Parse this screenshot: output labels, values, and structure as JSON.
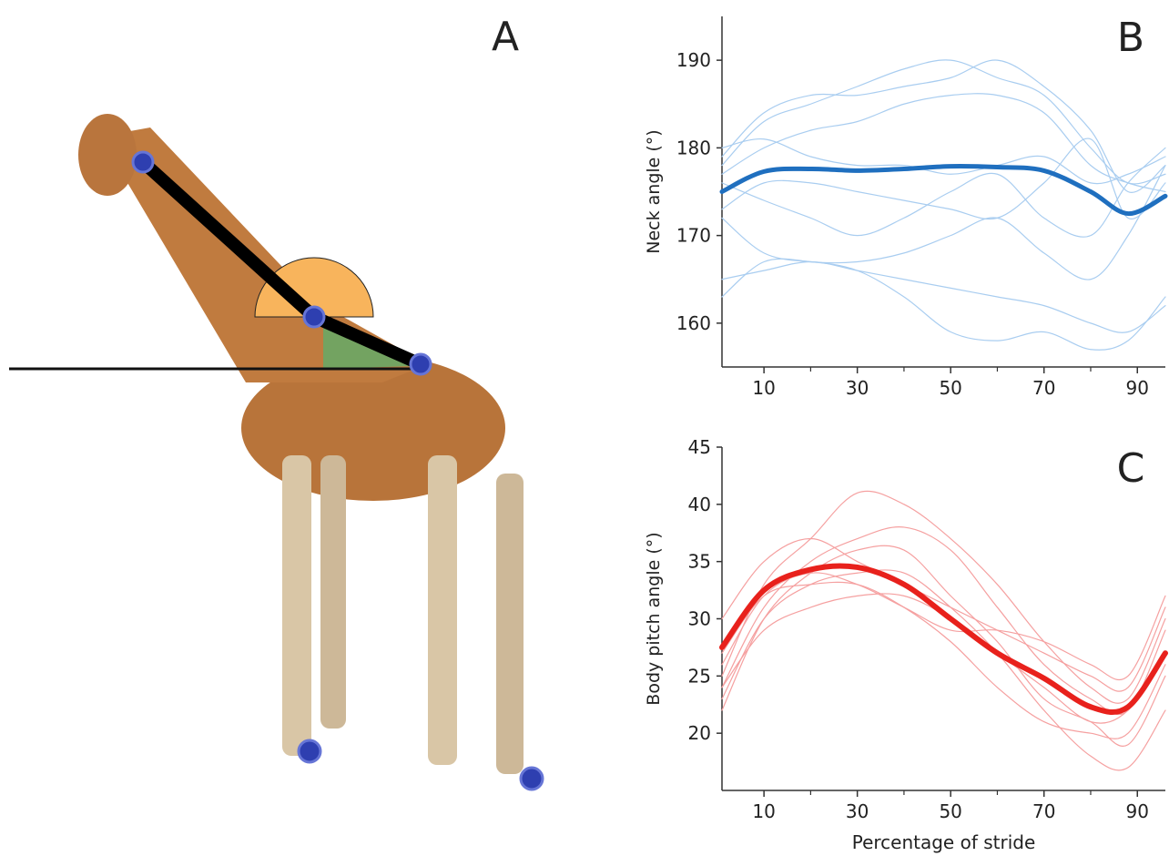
{
  "panel_a": {
    "label": "A"
  },
  "chart_data": [
    {
      "type": "line",
      "title": "B",
      "ylabel": "Neck angle (°)",
      "x": [
        1,
        10,
        20,
        30,
        40,
        50,
        60,
        70,
        80,
        88,
        96
      ],
      "xlim": [
        1,
        96
      ],
      "xticks": [
        10,
        30,
        50,
        70,
        90
      ],
      "xminor": [
        20,
        40,
        60,
        80
      ],
      "ylim": [
        155,
        195
      ],
      "yticks": [
        160,
        170,
        180,
        190
      ],
      "series": [
        {
          "color": "#a9cdf0",
          "linewidth": 1.2,
          "values": [
            178,
            183,
            185,
            187,
            189,
            190,
            188,
            186,
            180,
            176,
            177
          ]
        },
        {
          "color": "#a9cdf0",
          "linewidth": 1.2,
          "values": [
            179,
            184,
            186,
            186,
            187,
            188,
            190,
            187,
            182,
            175,
            178
          ]
        },
        {
          "color": "#a9cdf0",
          "linewidth": 1.2,
          "values": [
            177,
            180,
            182,
            183,
            185,
            186,
            186,
            184,
            178,
            176,
            175
          ]
        },
        {
          "color": "#a9cdf0",
          "linewidth": 1.2,
          "values": [
            173,
            176,
            176,
            175,
            174,
            173,
            172,
            176,
            181,
            172,
            176
          ]
        },
        {
          "color": "#a9cdf0",
          "linewidth": 1.2,
          "values": [
            172,
            168,
            167,
            167,
            168,
            170,
            172,
            168,
            165,
            170,
            178
          ]
        },
        {
          "color": "#a9cdf0",
          "linewidth": 1.2,
          "values": [
            165,
            166,
            167,
            166,
            165,
            164,
            163,
            162,
            160,
            159,
            162
          ]
        },
        {
          "color": "#a9cdf0",
          "linewidth": 1.2,
          "values": [
            163,
            167,
            167,
            166,
            163,
            159,
            158,
            159,
            157,
            158,
            163
          ]
        },
        {
          "color": "#a9cdf0",
          "linewidth": 1.2,
          "values": [
            176,
            174,
            172,
            170,
            172,
            175,
            177,
            172,
            170,
            176,
            180
          ]
        },
        {
          "color": "#a9cdf0",
          "linewidth": 1.2,
          "values": [
            180,
            181,
            179,
            178,
            178,
            177,
            178,
            179,
            176,
            177,
            179
          ]
        },
        {
          "color": "#1f6fbf",
          "linewidth": 5,
          "values": [
            175,
            177.3,
            177.6,
            177.4,
            177.6,
            177.9,
            177.8,
            177.4,
            175,
            172.5,
            174.5
          ]
        }
      ]
    },
    {
      "type": "line",
      "title": "C",
      "ylabel": "Body pitch angle (°)",
      "xlabel": "Percentage of stride",
      "x": [
        1,
        10,
        20,
        30,
        40,
        50,
        60,
        70,
        80,
        88,
        96
      ],
      "xlim": [
        1,
        96
      ],
      "xticks": [
        10,
        30,
        50,
        70,
        90
      ],
      "xminor": [
        20,
        40,
        60,
        80
      ],
      "ylim": [
        15,
        45
      ],
      "yticks": [
        20,
        25,
        30,
        35,
        40,
        45
      ],
      "series": [
        {
          "color": "#f5a0a0",
          "linewidth": 1.2,
          "values": [
            25,
            33,
            37,
            41,
            40,
            37,
            33,
            28,
            24,
            23,
            30
          ]
        },
        {
          "color": "#f5a0a0",
          "linewidth": 1.2,
          "values": [
            24,
            31,
            35,
            37,
            38,
            36,
            31,
            26,
            23,
            22,
            29
          ]
        },
        {
          "color": "#f5a0a0",
          "linewidth": 1.2,
          "values": [
            22,
            30,
            34,
            36,
            36,
            32,
            28,
            23,
            21,
            19,
            25
          ]
        },
        {
          "color": "#f5a0a0",
          "linewidth": 1.2,
          "values": [
            27,
            32,
            33,
            33,
            31,
            28,
            24,
            21,
            20,
            20,
            26
          ]
        },
        {
          "color": "#f5a0a0",
          "linewidth": 1.2,
          "values": [
            30,
            35,
            37,
            35,
            33,
            31,
            29,
            27,
            25,
            24,
            31
          ]
        },
        {
          "color": "#f5a0a0",
          "linewidth": 1.2,
          "values": [
            23,
            30,
            33,
            34,
            34,
            31,
            27,
            22,
            18,
            17,
            22
          ]
        },
        {
          "color": "#f5a0a0",
          "linewidth": 1.2,
          "values": [
            26,
            32,
            34,
            33,
            31,
            29,
            29,
            28,
            26,
            25,
            32
          ]
        },
        {
          "color": "#f5a0a0",
          "linewidth": 1.2,
          "values": [
            24,
            29,
            31,
            32,
            32,
            30,
            27,
            24,
            21,
            22,
            27
          ]
        },
        {
          "color": "#e8211c",
          "linewidth": 6,
          "values": [
            27.5,
            32.5,
            34.3,
            34.5,
            33,
            30,
            27,
            24.8,
            22.3,
            22.3,
            27
          ]
        }
      ]
    }
  ]
}
